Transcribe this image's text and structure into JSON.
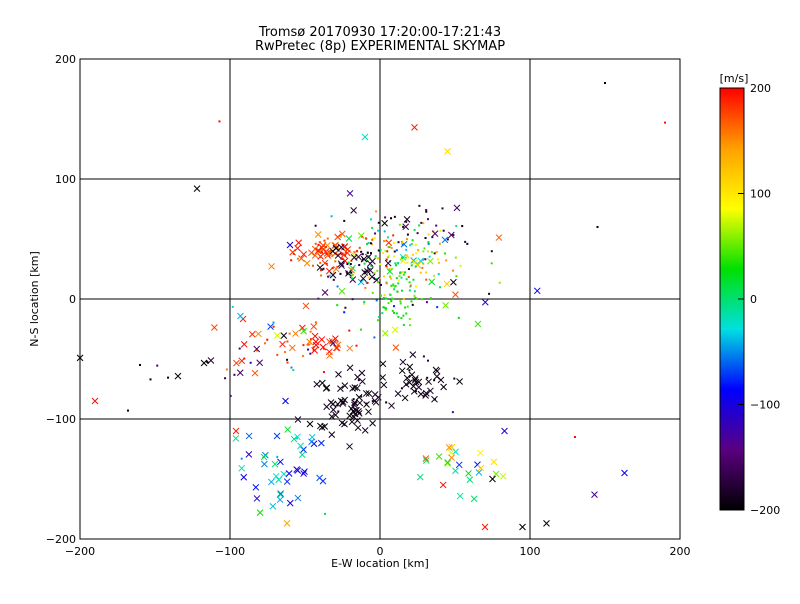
{
  "chart_data": {
    "type": "scatter",
    "title": "Tromsø 20170930 17:20:00-17:21:43",
    "subtitle": "RwPretec (8p) EXPERIMENTAL SKYMAP",
    "xlabel": "E-W location [km]",
    "ylabel": "N-S location [km]",
    "xlim": [
      -200,
      200
    ],
    "ylim": [
      -200,
      200
    ],
    "xticks": [
      "−200",
      "−100",
      "0",
      "100",
      "200"
    ],
    "yticks": [
      "200",
      "100",
      "0",
      "−100",
      "−200"
    ],
    "grid": true,
    "colorbar": {
      "label": "[m/s]",
      "min": -200,
      "max": 200,
      "ticks": [
        "200",
        "100",
        "0",
        "−100",
        "−200"
      ],
      "colors": [
        "#000000",
        "#5a0080",
        "#0000ff",
        "#00e0e0",
        "#00e000",
        "#ffff00",
        "#ffa000",
        "#ff0000"
      ]
    },
    "marker_types": [
      "cross",
      "dot"
    ],
    "clusters": [
      {
        "x": 10,
        "y": 33,
        "sx": 20,
        "sy": 16,
        "n": 170,
        "vmin": -60,
        "vmax": 200,
        "cross": 0.1
      },
      {
        "x": -35,
        "y": 38,
        "sx": 11,
        "sy": 7,
        "n": 70,
        "vmin": 150,
        "vmax": 200,
        "cross": 0.5
      },
      {
        "x": -20,
        "y": 28,
        "sx": 12,
        "sy": 8,
        "n": 40,
        "vmin": -200,
        "vmax": -170,
        "cross": 0.6
      },
      {
        "x": 10,
        "y": 5,
        "sx": 10,
        "sy": 12,
        "n": 60,
        "vmin": 0,
        "vmax": 60,
        "cross": 0.05
      },
      {
        "x": 15,
        "y": 60,
        "sx": 25,
        "sy": 12,
        "n": 40,
        "vmin": -200,
        "vmax": -150,
        "cross": 0.2
      },
      {
        "x": -40,
        "y": -38,
        "sx": 12,
        "sy": 8,
        "n": 30,
        "vmin": 150,
        "vmax": 200,
        "cross": 0.8
      },
      {
        "x": -20,
        "y": -85,
        "sx": 14,
        "sy": 13,
        "n": 70,
        "vmin": -200,
        "vmax": -180,
        "cross": 0.9
      },
      {
        "x": 25,
        "y": -70,
        "sx": 12,
        "sy": 10,
        "n": 40,
        "vmin": -200,
        "vmax": -180,
        "cross": 0.9
      },
      {
        "x": -65,
        "y": -140,
        "sx": 14,
        "sy": 18,
        "n": 45,
        "vmin": -120,
        "vmax": 20,
        "cross": 0.95
      },
      {
        "x": 50,
        "y": -135,
        "sx": 15,
        "sy": 14,
        "n": 25,
        "vmin": -80,
        "vmax": 200,
        "cross": 1.0
      },
      {
        "x": -70,
        "y": -40,
        "sx": 25,
        "sy": 15,
        "n": 25,
        "vmin": 150,
        "vmax": 200,
        "cross": 0.6
      },
      {
        "x": -40,
        "y": -15,
        "sx": 30,
        "sy": 20,
        "n": 25,
        "vmin": -200,
        "vmax": 200,
        "cross": 0.4
      },
      {
        "x": -110,
        "y": -55,
        "sx": 30,
        "sy": 15,
        "n": 18,
        "vmin": -200,
        "vmax": -150,
        "cross": 0.3
      },
      {
        "x": 60,
        "y": 0,
        "sx": 25,
        "sy": 30,
        "n": 20,
        "vmin": -200,
        "vmax": 200,
        "cross": 0.3
      }
    ],
    "points": [
      {
        "x": -190,
        "y": -85,
        "v": 195,
        "m": "cross"
      },
      {
        "x": -122,
        "y": 92,
        "v": -200,
        "m": "cross"
      },
      {
        "x": -107,
        "y": 148,
        "v": 195,
        "m": "dot"
      },
      {
        "x": -10,
        "y": 135,
        "v": -20,
        "m": "cross"
      },
      {
        "x": 23,
        "y": 143,
        "v": 190,
        "m": "cross"
      },
      {
        "x": 45,
        "y": 123,
        "v": 110,
        "m": "cross"
      },
      {
        "x": 150,
        "y": 180,
        "v": -200,
        "m": "dot"
      },
      {
        "x": 190,
        "y": 147,
        "v": 195,
        "m": "dot"
      },
      {
        "x": -20,
        "y": 88,
        "v": -130,
        "m": "cross"
      },
      {
        "x": 145,
        "y": 60,
        "v": -200,
        "m": "dot"
      },
      {
        "x": 95,
        "y": -190,
        "v": -200,
        "m": "cross"
      },
      {
        "x": 111,
        "y": -187,
        "v": -200,
        "m": "cross"
      },
      {
        "x": 143,
        "y": -163,
        "v": -130,
        "m": "cross"
      },
      {
        "x": 163,
        "y": -145,
        "v": -90,
        "m": "cross"
      },
      {
        "x": 83,
        "y": -110,
        "v": -100,
        "m": "cross"
      },
      {
        "x": 130,
        "y": -115,
        "v": 195,
        "m": "dot"
      },
      {
        "x": 70,
        "y": -190,
        "v": 195,
        "m": "cross"
      },
      {
        "x": -168,
        "y": -93,
        "v": -200,
        "m": "dot"
      },
      {
        "x": -160,
        "y": -55,
        "v": -200,
        "m": "dot"
      },
      {
        "x": -153,
        "y": -67,
        "v": -200,
        "m": "dot"
      },
      {
        "x": -62,
        "y": -187,
        "v": 140,
        "m": "cross"
      },
      {
        "x": -80,
        "y": -178,
        "v": 30,
        "m": "cross"
      },
      {
        "x": -96,
        "y": -110,
        "v": 190,
        "m": "cross"
      },
      {
        "x": -63,
        "y": -85,
        "v": -90,
        "m": "cross"
      },
      {
        "x": -60,
        "y": 45,
        "v": -100,
        "m": "cross"
      },
      {
        "x": 75,
        "y": -150,
        "v": -200,
        "m": "cross"
      }
    ]
  }
}
